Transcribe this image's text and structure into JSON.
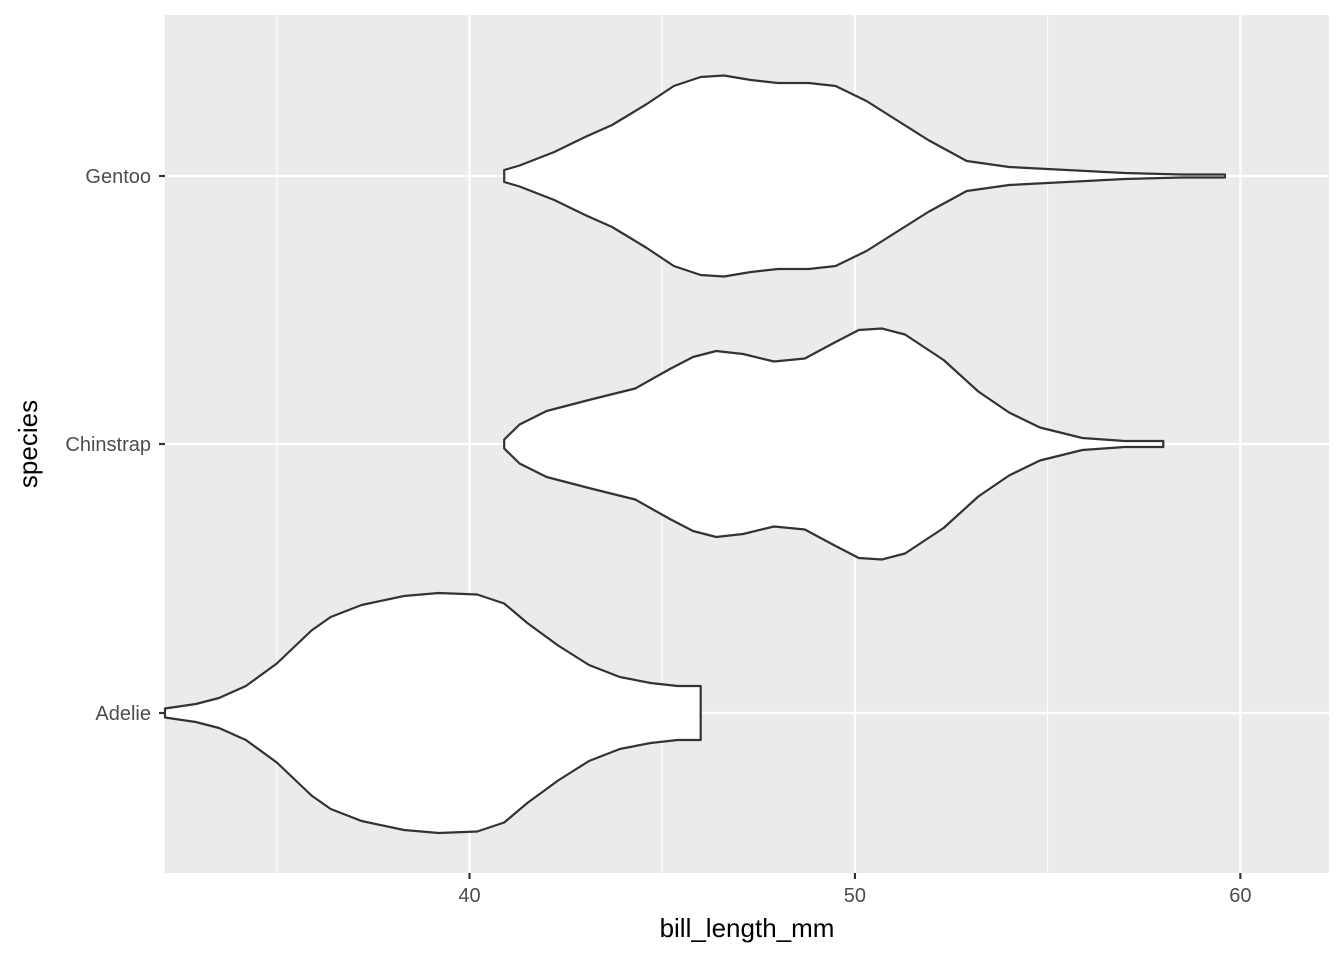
{
  "chart_data": {
    "type": "violin",
    "orientation": "horizontal",
    "xlabel": "bill_length_mm",
    "ylabel": "species",
    "xlim": [
      32.1,
      62.3
    ],
    "x_ticks": [
      40,
      50,
      60
    ],
    "x_minor_gridlines": [
      35,
      45,
      55
    ],
    "categories": [
      "Adelie",
      "Chinstrap",
      "Gentoo"
    ],
    "grid": true,
    "legend": "none",
    "colors": {
      "panel_background": "#ebebeb",
      "gridline": "#ffffff",
      "violin_fill": "#ffffff",
      "violin_outline": "#333333",
      "tick_label": "#4d4d4d",
      "axis_title": "#000000"
    },
    "series": [
      {
        "category": "Adelie",
        "range": [
          32.1,
          46.0
        ],
        "density_profile": [
          [
            32.1,
            0.03
          ],
          [
            32.9,
            0.06
          ],
          [
            33.5,
            0.1
          ],
          [
            34.2,
            0.18
          ],
          [
            35.0,
            0.33
          ],
          [
            35.9,
            0.55
          ],
          [
            36.4,
            0.64
          ],
          [
            37.2,
            0.72
          ],
          [
            38.3,
            0.78
          ],
          [
            39.2,
            0.8
          ],
          [
            40.2,
            0.79
          ],
          [
            40.9,
            0.73
          ],
          [
            41.5,
            0.6
          ],
          [
            42.3,
            0.45
          ],
          [
            43.1,
            0.32
          ],
          [
            43.9,
            0.24
          ],
          [
            44.7,
            0.2
          ],
          [
            45.4,
            0.18
          ],
          [
            46.0,
            0.18
          ]
        ]
      },
      {
        "category": "Chinstrap",
        "range": [
          40.9,
          58.0
        ],
        "density_profile": [
          [
            40.9,
            0.03
          ],
          [
            41.3,
            0.13
          ],
          [
            42.0,
            0.22
          ],
          [
            43.2,
            0.3
          ],
          [
            44.3,
            0.37
          ],
          [
            45.2,
            0.5
          ],
          [
            45.8,
            0.58
          ],
          [
            46.4,
            0.62
          ],
          [
            47.1,
            0.6
          ],
          [
            47.9,
            0.55
          ],
          [
            48.7,
            0.57
          ],
          [
            49.5,
            0.68
          ],
          [
            50.1,
            0.76
          ],
          [
            50.7,
            0.77
          ],
          [
            51.3,
            0.73
          ],
          [
            52.3,
            0.56
          ],
          [
            53.2,
            0.35
          ],
          [
            54.0,
            0.21
          ],
          [
            54.8,
            0.11
          ],
          [
            55.9,
            0.04
          ],
          [
            57.0,
            0.02
          ],
          [
            58.0,
            0.02
          ]
        ]
      },
      {
        "category": "Gentoo",
        "range": [
          40.9,
          59.6
        ],
        "density_profile": [
          [
            40.9,
            0.04
          ],
          [
            41.3,
            0.07
          ],
          [
            42.2,
            0.16
          ],
          [
            43.0,
            0.26
          ],
          [
            43.7,
            0.34
          ],
          [
            44.6,
            0.48
          ],
          [
            45.3,
            0.6
          ],
          [
            46.0,
            0.66
          ],
          [
            46.6,
            0.67
          ],
          [
            47.3,
            0.64
          ],
          [
            48.0,
            0.62
          ],
          [
            48.8,
            0.62
          ],
          [
            49.5,
            0.6
          ],
          [
            50.3,
            0.5
          ],
          [
            51.1,
            0.37
          ],
          [
            51.9,
            0.24
          ],
          [
            52.9,
            0.1
          ],
          [
            54.0,
            0.06
          ],
          [
            55.5,
            0.04
          ],
          [
            57.0,
            0.02
          ],
          [
            58.5,
            0.01
          ],
          [
            59.2,
            0.01
          ],
          [
            59.6,
            0.01
          ]
        ]
      }
    ]
  }
}
